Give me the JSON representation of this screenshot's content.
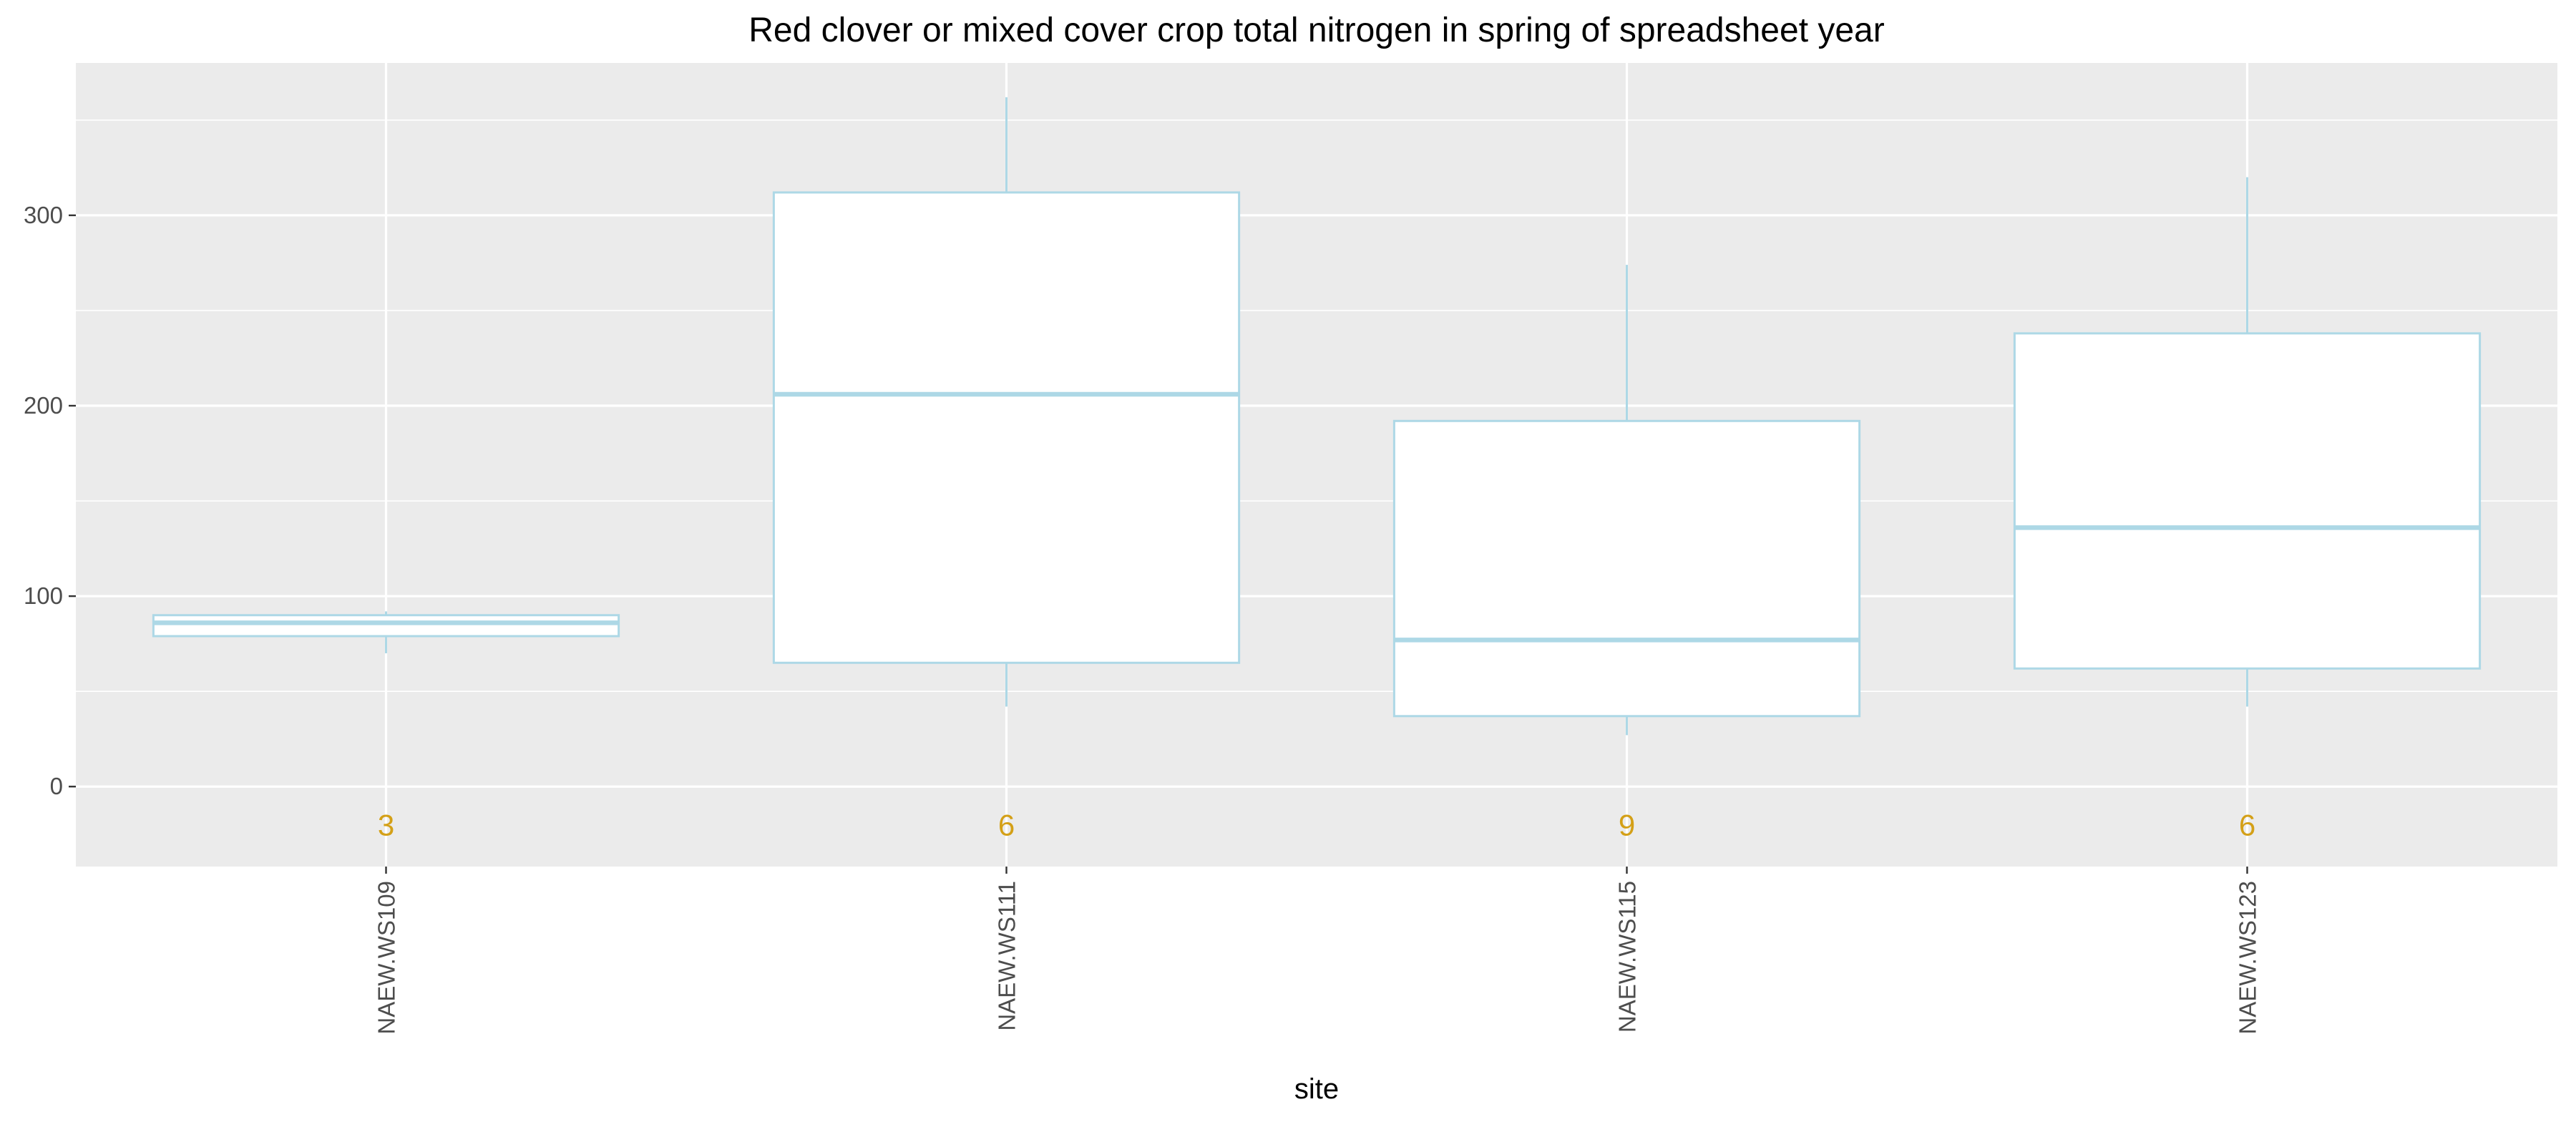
{
  "chart_data": {
    "type": "boxplot",
    "title": "Red clover or mixed cover crop total nitrogen in spring of spreadsheet year",
    "xlabel": "site",
    "ylabel": "",
    "ylim": [
      -42,
      380
    ],
    "y_ticks": [
      0,
      100,
      200,
      300
    ],
    "y_tick_labels": [
      "0",
      "100",
      "200",
      "300"
    ],
    "categories": [
      "NAEW.WS109",
      "NAEW.WS111",
      "NAEW.WS115",
      "NAEW.WS123"
    ],
    "boxes": [
      {
        "category": "NAEW.WS109",
        "whisker_low": 70,
        "q1": 79,
        "median": 86,
        "q3": 90,
        "whisker_high": 92,
        "n": "3"
      },
      {
        "category": "NAEW.WS111",
        "whisker_low": 42,
        "q1": 65,
        "median": 206,
        "q3": 312,
        "whisker_high": 362,
        "n": "6"
      },
      {
        "category": "NAEW.WS115",
        "whisker_low": 27,
        "q1": 37,
        "median": 77,
        "q3": 192,
        "whisker_high": 274,
        "n": "9"
      },
      {
        "category": "NAEW.WS123",
        "whisker_low": 42,
        "q1": 62,
        "median": 136,
        "q3": 238,
        "whisker_high": 320,
        "n": "6"
      }
    ],
    "count_label_y": -20,
    "grid": true,
    "colors": {
      "panel": "#ebebeb",
      "grid": "#ffffff",
      "box_stroke": "#add8e6",
      "box_fill": "#ffffff",
      "count_text": "#d4a017",
      "tick_text": "#4d4d4d"
    }
  }
}
